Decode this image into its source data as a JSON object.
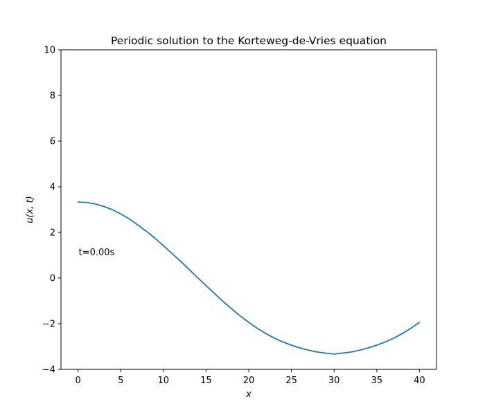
{
  "chart_data": {
    "type": "line",
    "title": "Periodic solution to the Korteweg-de-Vries equation",
    "xlabel": "x",
    "ylabel": "u(x, t)",
    "xlim": [
      -2,
      42
    ],
    "ylim": [
      -4,
      10
    ],
    "xticks": [
      0,
      5,
      10,
      15,
      20,
      25,
      30,
      35,
      40
    ],
    "yticks": [
      -4,
      -2,
      0,
      2,
      4,
      6,
      8,
      10
    ],
    "ytick_labels": [
      "−4",
      "−2",
      "0",
      "2",
      "4",
      "6",
      "8",
      "10"
    ],
    "grid": false,
    "annotation": {
      "text": "t=0.00s",
      "x": 0,
      "y": 1.0
    },
    "series": [
      {
        "color": "#1f77b4",
        "x": [
          0,
          1,
          2,
          3,
          4,
          5,
          6,
          7,
          8,
          9,
          10,
          11,
          12,
          13,
          14,
          15,
          16,
          17,
          18,
          19,
          20,
          21,
          22,
          23,
          24,
          25,
          26,
          27,
          28,
          29,
          30,
          31,
          32,
          33,
          34,
          35,
          36,
          37,
          38,
          39,
          40
        ],
        "y": [
          3.33,
          3.31,
          3.25,
          3.14,
          3.0,
          2.81,
          2.59,
          2.33,
          2.05,
          1.75,
          1.42,
          1.08,
          0.74,
          0.38,
          0.02,
          -0.33,
          -0.68,
          -1.03,
          -1.35,
          -1.66,
          -1.94,
          -2.2,
          -2.43,
          -2.63,
          -2.8,
          -2.94,
          -3.06,
          -3.16,
          -3.24,
          -3.29,
          -3.33,
          -3.29,
          -3.24,
          -3.16,
          -3.06,
          -2.94,
          -2.8,
          -2.63,
          -2.43,
          -2.2,
          -1.94
        ]
      }
    ]
  }
}
